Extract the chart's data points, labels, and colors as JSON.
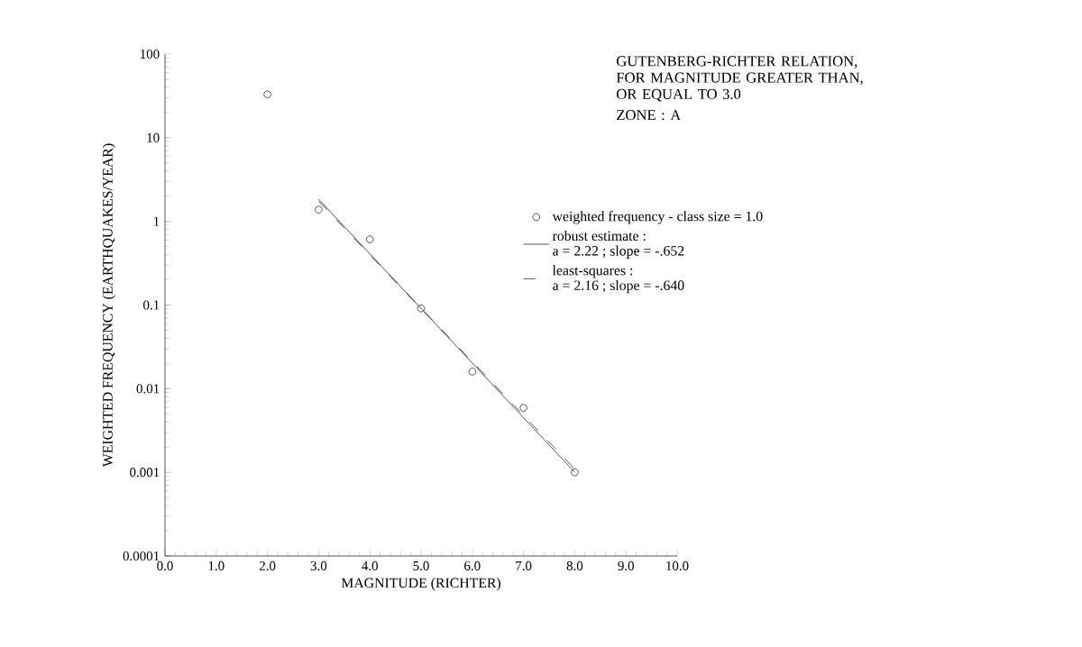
{
  "chart_data": {
    "type": "scatter",
    "title": "GUTENBERG-RICHTER RELATION,\nFOR MAGNITUDE GREATER THAN,\nOR EQUAL TO 3.0",
    "subtitle": "ZONE : A",
    "xlabel": "MAGNITUDE (RICHTER)",
    "ylabel": "WEIGHTED FREQUENCY (EARTHQUAKES/YEAR)",
    "log": "y",
    "legend": "right",
    "grid": false,
    "xlim": [
      0,
      10
    ],
    "ylim": [
      0.0001,
      100
    ],
    "xticks": [
      {
        "value": 0,
        "label": "0.0"
      },
      {
        "value": 1,
        "label": "1.0"
      },
      {
        "value": 2,
        "label": "2.0"
      },
      {
        "value": 3,
        "label": "3.0"
      },
      {
        "value": 4,
        "label": "4.0"
      },
      {
        "value": 5,
        "label": "5.0"
      },
      {
        "value": 6,
        "label": "6.0"
      },
      {
        "value": 7,
        "label": "7.0"
      },
      {
        "value": 8,
        "label": "8.0"
      },
      {
        "value": 9,
        "label": "9.0"
      },
      {
        "value": 10,
        "label": "10.0"
      }
    ],
    "yticks": [
      0.0001,
      0.001,
      0.01,
      0.1,
      1,
      10,
      100
    ],
    "annotations": [
      "a = 2.22 ; slope =  -.652",
      "a = 2.16 ; slope =  -.640"
    ],
    "series": [
      {
        "name": "weighted frequency - class size = 1.0",
        "type": "scatter",
        "marker": "circle",
        "color": "#000000",
        "x": [
          2,
          3,
          4,
          5,
          6,
          7,
          8
        ],
        "values": [
          33,
          1.38,
          0.61,
          0.091,
          0.016,
          0.0059,
          0.001
        ]
      },
      {
        "name": "robust estimate :",
        "type": "line",
        "marker": "none",
        "line_style": "solid",
        "color": "#000000",
        "x": [
          3,
          8
        ],
        "values": [
          1.84,
          0.001
        ]
      },
      {
        "name": "least-squares :",
        "type": "line",
        "marker": "none",
        "line_style": "dashed",
        "color": "#000000",
        "x": [
          3,
          8
        ],
        "values": [
          1.74,
          0.0011
        ]
      }
    ]
  }
}
